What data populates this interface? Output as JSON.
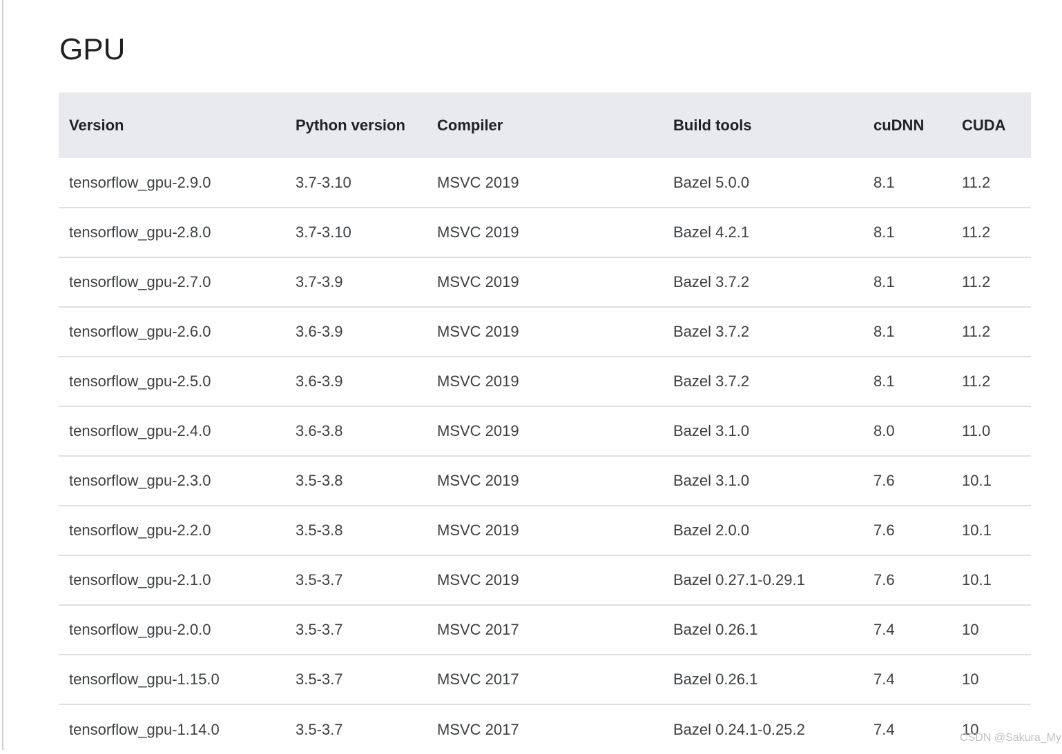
{
  "page": {
    "title": "GPU",
    "watermark": "CSDN @Sakura_My"
  },
  "table": {
    "columns": [
      {
        "key": "version",
        "label": "Version"
      },
      {
        "key": "python-version",
        "label": "Python version"
      },
      {
        "key": "compiler",
        "label": "Compiler"
      },
      {
        "key": "build-tools",
        "label": "Build tools"
      },
      {
        "key": "cudnn",
        "label": "cuDNN"
      },
      {
        "key": "cuda",
        "label": "CUDA"
      }
    ],
    "rows": [
      [
        "tensorflow_gpu-2.9.0",
        "3.7-3.10",
        "MSVC 2019",
        "Bazel 5.0.0",
        "8.1",
        "11.2"
      ],
      [
        "tensorflow_gpu-2.8.0",
        "3.7-3.10",
        "MSVC 2019",
        "Bazel 4.2.1",
        "8.1",
        "11.2"
      ],
      [
        "tensorflow_gpu-2.7.0",
        "3.7-3.9",
        "MSVC 2019",
        "Bazel 3.7.2",
        "8.1",
        "11.2"
      ],
      [
        "tensorflow_gpu-2.6.0",
        "3.6-3.9",
        "MSVC 2019",
        "Bazel 3.7.2",
        "8.1",
        "11.2"
      ],
      [
        "tensorflow_gpu-2.5.0",
        "3.6-3.9",
        "MSVC 2019",
        "Bazel 3.7.2",
        "8.1",
        "11.2"
      ],
      [
        "tensorflow_gpu-2.4.0",
        "3.6-3.8",
        "MSVC 2019",
        "Bazel 3.1.0",
        "8.0",
        "11.0"
      ],
      [
        "tensorflow_gpu-2.3.0",
        "3.5-3.8",
        "MSVC 2019",
        "Bazel 3.1.0",
        "7.6",
        "10.1"
      ],
      [
        "tensorflow_gpu-2.2.0",
        "3.5-3.8",
        "MSVC 2019",
        "Bazel 2.0.0",
        "7.6",
        "10.1"
      ],
      [
        "tensorflow_gpu-2.1.0",
        "3.5-3.7",
        "MSVC 2019",
        "Bazel 0.27.1-0.29.1",
        "7.6",
        "10.1"
      ],
      [
        "tensorflow_gpu-2.0.0",
        "3.5-3.7",
        "MSVC 2017",
        "Bazel 0.26.1",
        "7.4",
        "10"
      ],
      [
        "tensorflow_gpu-1.15.0",
        "3.5-3.7",
        "MSVC 2017",
        "Bazel 0.26.1",
        "7.4",
        "10"
      ],
      [
        "tensorflow_gpu-1.14.0",
        "3.5-3.7",
        "MSVC 2017",
        "Bazel 0.24.1-0.25.2",
        "7.4",
        "10"
      ]
    ]
  }
}
